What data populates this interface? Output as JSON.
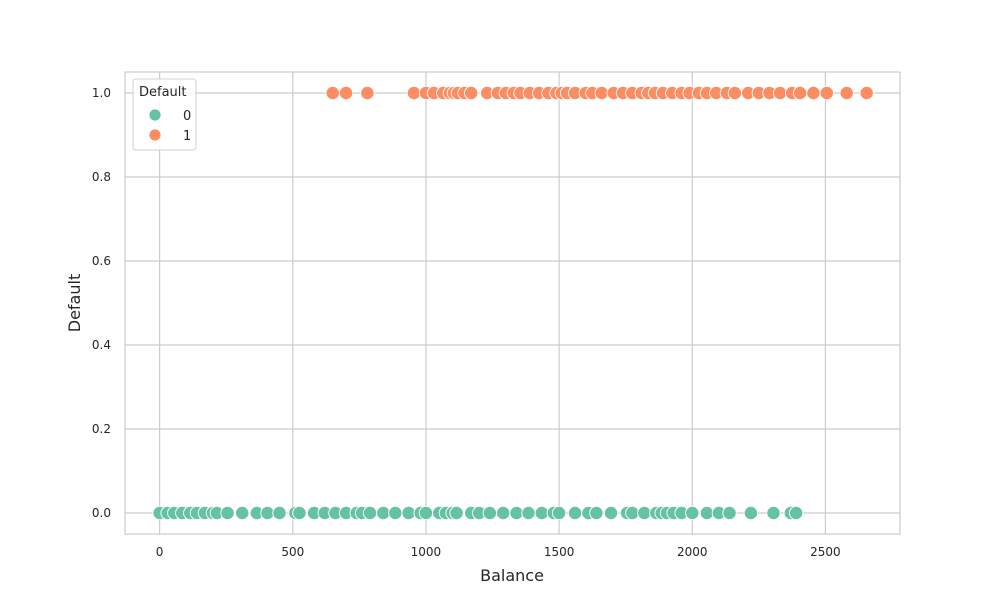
{
  "chart_data": {
    "type": "scatter",
    "title": "",
    "xlabel": "Balance",
    "ylabel": "Default",
    "xlim": [
      -130,
      2780
    ],
    "ylim": [
      -0.05,
      1.05
    ],
    "xticks": [
      0,
      500,
      1000,
      1500,
      2000,
      2500
    ],
    "yticks": [
      0.0,
      0.2,
      0.4,
      0.6,
      0.8,
      1.0
    ],
    "xtick_labels": [
      "0",
      "500",
      "1000",
      "1500",
      "2000",
      "2500"
    ],
    "ytick_labels": [
      "0.0",
      "0.2",
      "0.4",
      "0.6",
      "0.8",
      "1.0"
    ],
    "grid": true,
    "legend": {
      "title": "Default",
      "placement": "upper-left",
      "entries": [
        {
          "label": "0",
          "color": "#66c2a5"
        },
        {
          "label": "1",
          "color": "#fc8d62"
        }
      ]
    },
    "series": [
      {
        "name": "0",
        "color": "#66c2a5",
        "y": 0,
        "x": [
          0,
          30,
          55,
          85,
          115,
          140,
          170,
          200,
          215,
          255,
          310,
          365,
          405,
          450,
          510,
          525,
          580,
          620,
          660,
          700,
          740,
          760,
          790,
          840,
          885,
          935,
          980,
          1000,
          1050,
          1075,
          1100,
          1115,
          1170,
          1200,
          1240,
          1290,
          1340,
          1385,
          1435,
          1480,
          1500,
          1560,
          1610,
          1640,
          1695,
          1755,
          1775,
          1820,
          1865,
          1885,
          1905,
          1930,
          1960,
          2000,
          2055,
          2100,
          2140,
          2220,
          2305,
          2370,
          2390
        ]
      },
      {
        "name": "1",
        "color": "#fc8d62",
        "y": 1,
        "x": [
          650,
          700,
          780,
          955,
          1000,
          1030,
          1065,
          1090,
          1105,
          1120,
          1145,
          1170,
          1230,
          1270,
          1300,
          1330,
          1355,
          1390,
          1425,
          1460,
          1490,
          1510,
          1530,
          1560,
          1600,
          1625,
          1660,
          1705,
          1740,
          1775,
          1810,
          1835,
          1860,
          1890,
          1925,
          1960,
          1990,
          2025,
          2055,
          2090,
          2130,
          2160,
          2210,
          2250,
          2290,
          2330,
          2375,
          2405,
          2455,
          2505,
          2580,
          2655
        ]
      }
    ]
  }
}
